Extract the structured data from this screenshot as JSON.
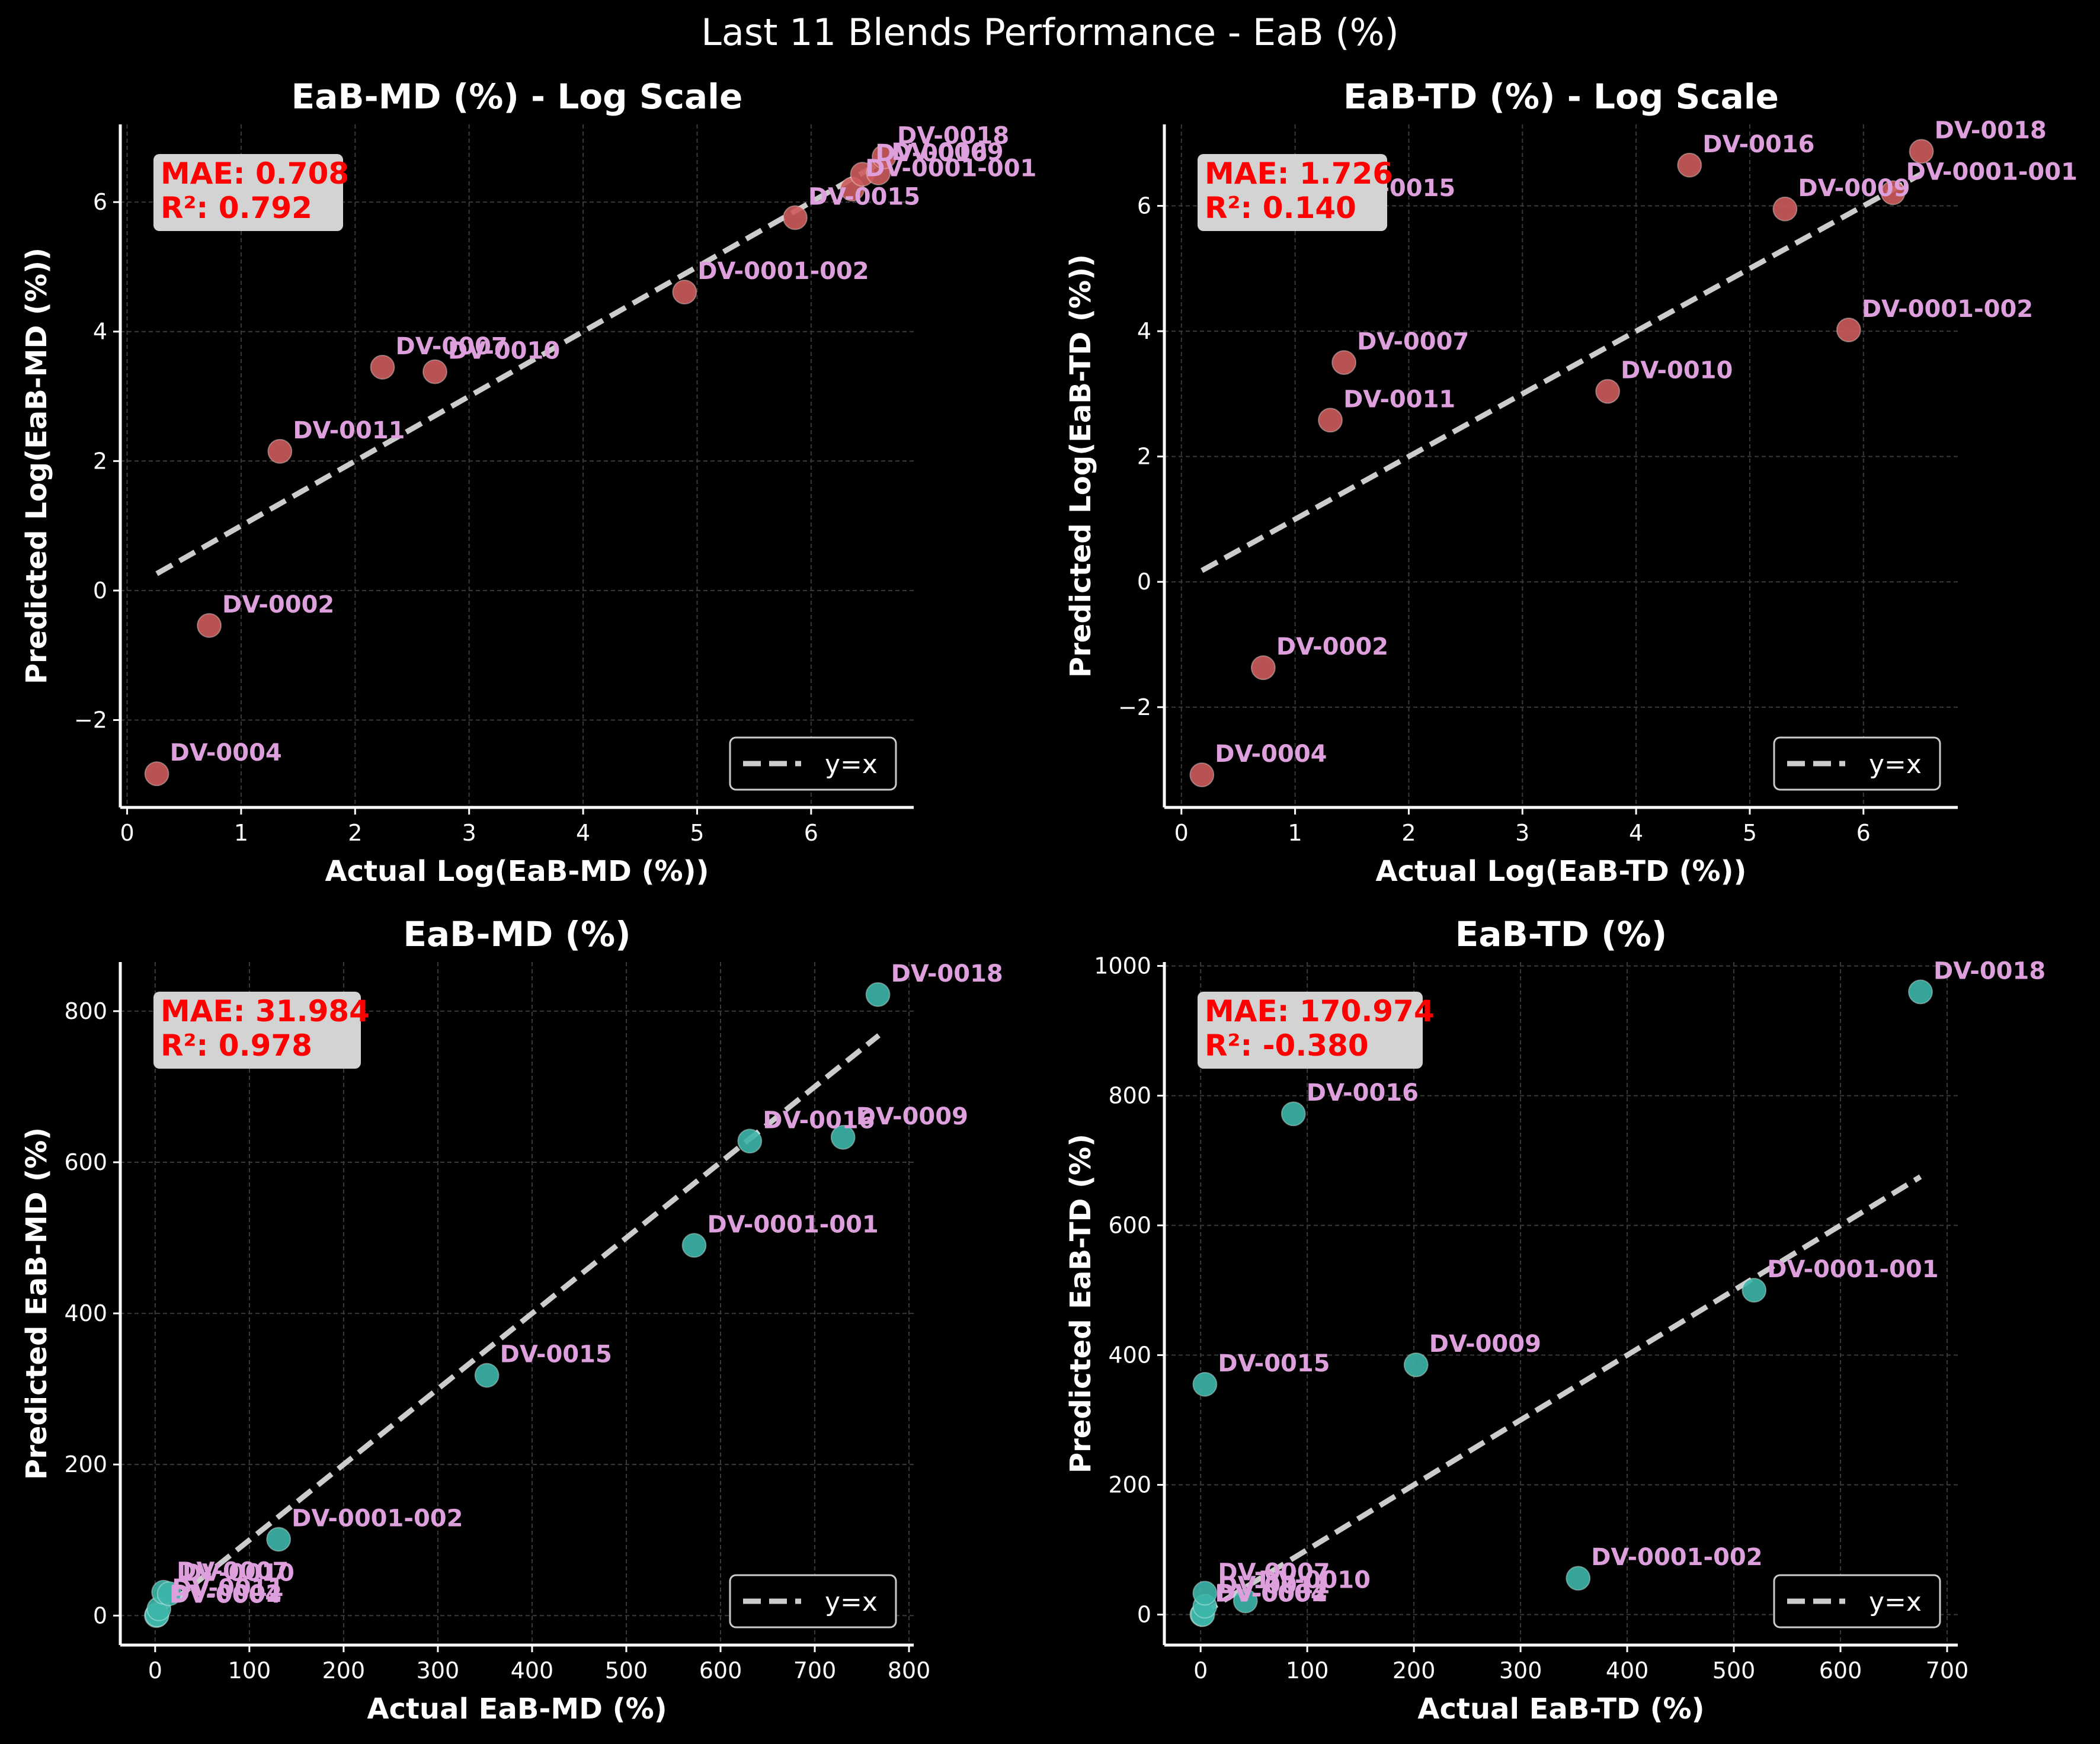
{
  "figure": {
    "title": "Last 11 Blends Performance - EaB (%)",
    "background": "#000000"
  },
  "chart_data": [
    {
      "type": "scatter",
      "title": "EaB-MD (%) - Log Scale",
      "xlabel": "Actual Log(EaB-MD (%))",
      "ylabel": "Predicted Log(EaB-MD (%))",
      "xlim": [
        -0.06,
        6.9
      ],
      "ylim": [
        -3.35,
        7.2
      ],
      "xticks": [
        0,
        1,
        2,
        3,
        4,
        5,
        6
      ],
      "xtick_labels": [
        "0",
        "1",
        "2",
        "3",
        "4",
        "5",
        "6"
      ],
      "yticks": [
        -2,
        0,
        2,
        4,
        6
      ],
      "ytick_labels": [
        "−2",
        "0",
        "2",
        "4",
        "6"
      ],
      "grid": true,
      "point_color": "#cd5c5c",
      "reference_line": {
        "label": "y=x",
        "from": 0.26,
        "to": 6.62,
        "color": "#cccccc"
      },
      "legend_position": "bottom-right",
      "stats": {
        "mae": "MAE: 0.708",
        "r2": "R²: 0.792"
      },
      "points": [
        {
          "label": "DV-0004",
          "x": 0.26,
          "y": -2.83
        },
        {
          "label": "DV-0002",
          "x": 0.72,
          "y": -0.54
        },
        {
          "label": "DV-0011",
          "x": 1.34,
          "y": 2.15
        },
        {
          "label": "DV-0007",
          "x": 2.24,
          "y": 3.45
        },
        {
          "label": "DV-0010",
          "x": 2.7,
          "y": 3.38
        },
        {
          "label": "DV-0001-002",
          "x": 4.89,
          "y": 4.61
        },
        {
          "label": "DV-0015",
          "x": 5.86,
          "y": 5.76
        },
        {
          "label": "DV-0001-001",
          "x": 6.36,
          "y": 6.2
        },
        {
          "label": "DV-0016",
          "x": 6.45,
          "y": 6.43
        },
        {
          "label": "DV-0009",
          "x": 6.59,
          "y": 6.45
        },
        {
          "label": "DV-0018",
          "x": 6.64,
          "y": 6.7
        }
      ]
    },
    {
      "type": "scatter",
      "title": "EaB-TD (%) - Log Scale",
      "xlabel": "Actual Log(EaB-TD (%))",
      "ylabel": "Predicted Log(EaB-TD (%))",
      "xlim": [
        -0.15,
        6.83
      ],
      "ylim": [
        -3.6,
        7.3
      ],
      "xticks": [
        0,
        1,
        2,
        3,
        4,
        5,
        6
      ],
      "xtick_labels": [
        "0",
        "1",
        "2",
        "3",
        "4",
        "5",
        "6"
      ],
      "yticks": [
        -2,
        0,
        2,
        4,
        6
      ],
      "ytick_labels": [
        "−2",
        "0",
        "2",
        "4",
        "6"
      ],
      "grid": true,
      "point_color": "#cd5c5c",
      "reference_line": {
        "label": "y=x",
        "from": 0.18,
        "to": 6.51,
        "color": "#cccccc"
      },
      "legend_position": "bottom-right",
      "stats": {
        "mae": "MAE: 1.726",
        "r2": "R²: 0.140"
      },
      "points": [
        {
          "label": "DV-0004",
          "x": 0.18,
          "y": -3.08
        },
        {
          "label": "DV-0002",
          "x": 0.72,
          "y": -1.37
        },
        {
          "label": "DV-0011",
          "x": 1.31,
          "y": 2.58
        },
        {
          "label": "DV-0007",
          "x": 1.43,
          "y": 3.5
        },
        {
          "label": "DV-0015",
          "x": 1.31,
          "y": 5.95
        },
        {
          "label": "DV-0010",
          "x": 3.75,
          "y": 3.04
        },
        {
          "label": "DV-0016",
          "x": 4.47,
          "y": 6.65
        },
        {
          "label": "DV-0009",
          "x": 5.31,
          "y": 5.95
        },
        {
          "label": "DV-0001-002",
          "x": 5.87,
          "y": 4.02
        },
        {
          "label": "DV-0001-001",
          "x": 6.26,
          "y": 6.21
        },
        {
          "label": "DV-0018",
          "x": 6.51,
          "y": 6.87
        }
      ]
    },
    {
      "type": "scatter",
      "title": "EaB-MD (%)",
      "xlabel": "Actual EaB-MD (%)",
      "ylabel": "Predicted EaB-MD (%)",
      "xlim": [
        -37,
        805
      ],
      "ylim": [
        -39,
        865
      ],
      "xticks": [
        0,
        100,
        200,
        300,
        400,
        500,
        600,
        700,
        800
      ],
      "xtick_labels": [
        "0",
        "100",
        "200",
        "300",
        "400",
        "500",
        "600",
        "700",
        "800"
      ],
      "yticks": [
        0,
        200,
        400,
        600,
        800
      ],
      "ytick_labels": [
        "0",
        "200",
        "400",
        "600",
        "800"
      ],
      "grid": true,
      "point_color": "#3cb6a8",
      "reference_line": {
        "label": "y=x",
        "from": 0,
        "to": 768,
        "color": "#cccccc"
      },
      "legend_position": "bottom-right",
      "stats": {
        "mae": "MAE: 31.984",
        "r2": "R²: 0.978"
      },
      "points": [
        {
          "label": "DV-0004",
          "x": 1.3,
          "y": 0
        },
        {
          "label": "DV-0002",
          "x": 2,
          "y": 1
        },
        {
          "label": "DV-0011",
          "x": 4,
          "y": 9
        },
        {
          "label": "DV-0007",
          "x": 9,
          "y": 31
        },
        {
          "label": "DV-0010",
          "x": 15,
          "y": 29
        },
        {
          "label": "DV-0001-002",
          "x": 131,
          "y": 101
        },
        {
          "label": "DV-0015",
          "x": 352,
          "y": 318
        },
        {
          "label": "DV-0001-001",
          "x": 572,
          "y": 490
        },
        {
          "label": "DV-0016",
          "x": 631,
          "y": 628
        },
        {
          "label": "DV-0009",
          "x": 730,
          "y": 633
        },
        {
          "label": "DV-0018",
          "x": 767,
          "y": 822
        }
      ]
    },
    {
      "type": "scatter",
      "title": "EaB-TD (%)",
      "xlabel": "Actual EaB-TD (%)",
      "ylabel": "Predicted EaB-TD (%)",
      "xlim": [
        -34,
        710
      ],
      "ylim": [
        -47,
        1006
      ],
      "xticks": [
        0,
        100,
        200,
        300,
        400,
        500,
        600,
        700
      ],
      "xtick_labels": [
        "0",
        "100",
        "200",
        "300",
        "400",
        "500",
        "600",
        "700"
      ],
      "yticks": [
        0,
        200,
        400,
        600,
        800,
        1000
      ],
      "ytick_labels": [
        "0",
        "200",
        "400",
        "600",
        "800",
        "1000"
      ],
      "grid": true,
      "point_color": "#3cb6a8",
      "reference_line": {
        "label": "y=x",
        "from": 1,
        "to": 675,
        "color": "#cccccc"
      },
      "legend_position": "bottom-right",
      "stats": {
        "mae": "MAE: 170.974",
        "r2": "R²: -0.380"
      },
      "points": [
        {
          "label": "DV-0004",
          "x": 1.2,
          "y": 0
        },
        {
          "label": "DV-0002",
          "x": 2,
          "y": 0.3
        },
        {
          "label": "DV-0011",
          "x": 4,
          "y": 13
        },
        {
          "label": "DV-0007",
          "x": 4,
          "y": 33
        },
        {
          "label": "DV-0015",
          "x": 4,
          "y": 355
        },
        {
          "label": "DV-0010",
          "x": 42,
          "y": 21
        },
        {
          "label": "DV-0016",
          "x": 87,
          "y": 772
        },
        {
          "label": "DV-0009",
          "x": 202,
          "y": 385
        },
        {
          "label": "DV-0001-002",
          "x": 354,
          "y": 56
        },
        {
          "label": "DV-0001-001",
          "x": 519,
          "y": 500
        },
        {
          "label": "DV-0018",
          "x": 675,
          "y": 960
        }
      ]
    }
  ]
}
